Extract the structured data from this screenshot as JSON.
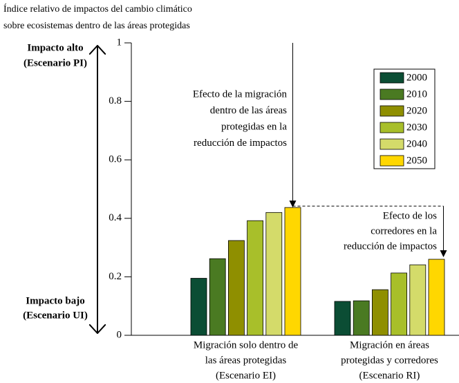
{
  "chart_data": {
    "type": "bar",
    "title": [
      "Índice relativo de impactos del cambio climático",
      "sobre ecosistemas dentro de las áreas protegidas"
    ],
    "high_label": [
      "Impacto alto",
      "(Escenario PI)"
    ],
    "low_label": [
      "Impacto bajo",
      "(Escenario UI)"
    ],
    "categories": [
      [
        "Migración solo dentro de",
        "las áreas protegidas",
        "(Escenario EI)"
      ],
      [
        "Migración en áreas",
        "protegidas y corredores",
        "(Escenario RI)"
      ]
    ],
    "series": [
      {
        "name": "2000",
        "color": "#0b4d34",
        "values": [
          0.195,
          0.116
        ]
      },
      {
        "name": "2010",
        "color": "#4a7a22",
        "values": [
          0.262,
          0.118
        ]
      },
      {
        "name": "2020",
        "color": "#8f8f00",
        "values": [
          0.324,
          0.156
        ]
      },
      {
        "name": "2030",
        "color": "#a8bf2a",
        "values": [
          0.392,
          0.213
        ]
      },
      {
        "name": "2040",
        "color": "#d4db6a",
        "values": [
          0.42,
          0.241
        ]
      },
      {
        "name": "2050",
        "color": "#ffd700",
        "values": [
          0.437,
          0.26
        ]
      }
    ],
    "annotations": [
      [
        "Efecto de la migración",
        "dentro de las áreas",
        "protegidas en la",
        "reducción de impactos"
      ],
      [
        "Efecto de los",
        "corredores en la",
        "reducción de impactos"
      ]
    ],
    "ylim": [
      0,
      1
    ],
    "yticks": [
      0,
      0.2,
      0.4,
      0.6,
      0.8,
      1
    ],
    "legend": "upper right"
  }
}
